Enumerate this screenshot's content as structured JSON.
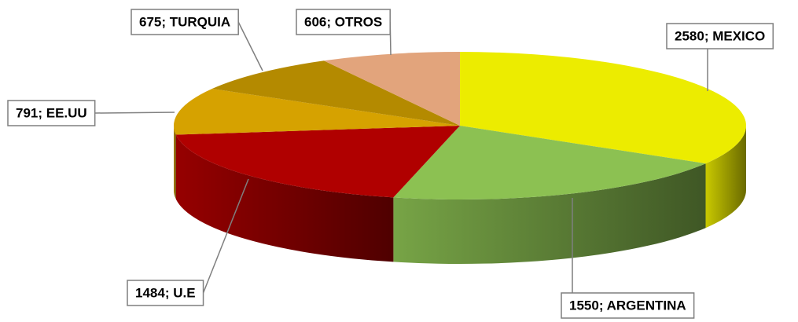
{
  "chart_data": {
    "type": "pie",
    "values": [
      2580,
      1550,
      1484,
      791,
      675,
      606
    ],
    "value_labels": [
      "2580; MEXICO",
      "1550; ARGENTINA",
      "1484; U.E",
      "791; EE.UU",
      "675; TURQUIA",
      "606; OTROS"
    ],
    "colors": [
      "#ecec00",
      "#8cc152",
      "#b00000",
      "#d6a200",
      "#b48a00",
      "#e2a47c"
    ]
  }
}
